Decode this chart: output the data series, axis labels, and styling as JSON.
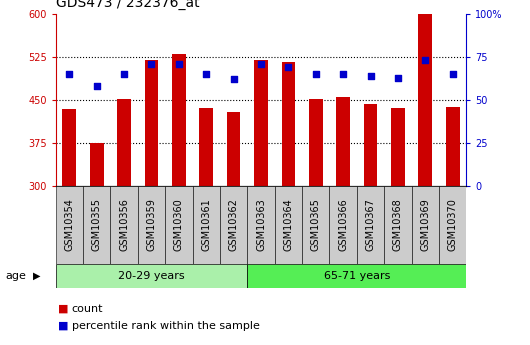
{
  "title": "GDS473 / 232376_at",
  "samples": [
    "GSM10354",
    "GSM10355",
    "GSM10356",
    "GSM10359",
    "GSM10360",
    "GSM10361",
    "GSM10362",
    "GSM10363",
    "GSM10364",
    "GSM10365",
    "GSM10366",
    "GSM10367",
    "GSM10368",
    "GSM10369",
    "GSM10370"
  ],
  "counts": [
    435,
    375,
    452,
    519,
    530,
    437,
    430,
    519,
    517,
    451,
    455,
    443,
    437,
    600,
    438
  ],
  "percentiles": [
    65,
    58,
    65,
    71,
    71,
    65,
    62,
    71,
    69,
    65,
    65,
    64,
    63,
    73,
    65
  ],
  "group1_indices": [
    0,
    1,
    2,
    3,
    4,
    5,
    6
  ],
  "group2_indices": [
    7,
    8,
    9,
    10,
    11,
    12,
    13,
    14
  ],
  "group1_label": "20-29 years",
  "group2_label": "65-71 years",
  "age_label": "age",
  "ylim_left": [
    300,
    600
  ],
  "ylim_right": [
    0,
    100
  ],
  "yticks_left": [
    300,
    375,
    450,
    525,
    600
  ],
  "yticks_right": [
    0,
    25,
    50,
    75,
    100
  ],
  "bar_color": "#cc0000",
  "dot_color": "#0000cc",
  "group1_bg": "#aaf0aa",
  "group2_bg": "#55ee55",
  "tick_bg": "#cccccc",
  "plot_bg": "#ffffff",
  "legend_count_color": "#cc0000",
  "legend_pct_color": "#0000cc",
  "title_fontsize": 10,
  "tick_fontsize": 7,
  "label_fontsize": 8,
  "dotted_lines": [
    375,
    450,
    525
  ],
  "bar_width": 0.5
}
